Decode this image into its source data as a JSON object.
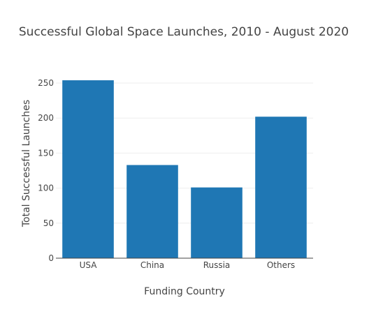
{
  "chart_data": {
    "type": "bar",
    "title": "Successful Global Space Launches, 2010 - August 2020",
    "xlabel": "Funding Country",
    "ylabel": "Total Successful Launches",
    "categories": [
      "USA",
      "China",
      "Russia",
      "Others"
    ],
    "values": [
      254,
      133,
      101,
      202
    ],
    "ylim": [
      0,
      266
    ],
    "yticks": [
      0,
      50,
      100,
      150,
      200,
      250
    ],
    "grid": "horizontal",
    "bar_color": "#1f77b4"
  }
}
